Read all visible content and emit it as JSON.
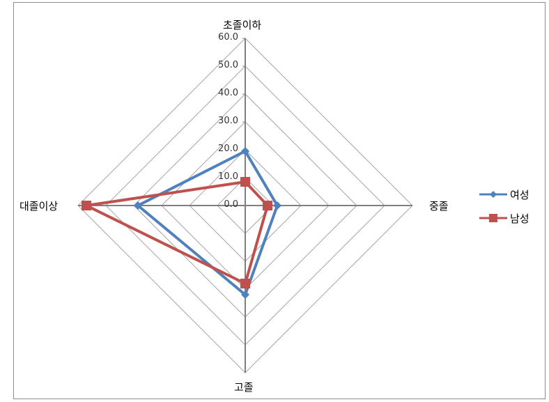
{
  "chart_data": {
    "type": "radar",
    "categories": [
      "초졸이하",
      "중졸",
      "고졸",
      "대졸이상"
    ],
    "series": [
      {
        "name": "여성",
        "values": [
          19.5,
          11.5,
          32.0,
          38.5
        ],
        "color": "#4f81bd",
        "marker": "diamond"
      },
      {
        "name": "남성",
        "values": [
          8.5,
          8.0,
          28.0,
          57.0
        ],
        "color": "#c0504d",
        "marker": "square"
      }
    ],
    "rlim": [
      0,
      60
    ],
    "ticks": [
      "0.0",
      "10.0",
      "20.0",
      "30.0",
      "40.0",
      "50.0",
      "60.0"
    ],
    "gridlines": true,
    "legend_position": "right"
  }
}
